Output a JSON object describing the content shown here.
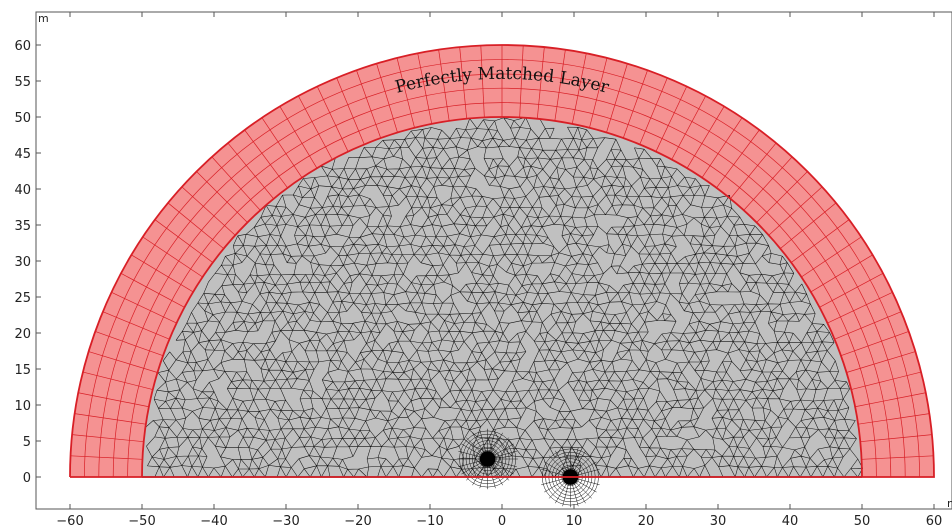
{
  "plot": {
    "x_unit": "m",
    "y_unit": "m",
    "xlim": [
      -60,
      60
    ],
    "ylim": [
      0,
      60
    ],
    "x_ticks": [
      -60,
      -50,
      -40,
      -30,
      -20,
      -10,
      0,
      10,
      20,
      30,
      40,
      50,
      60
    ],
    "y_ticks": [
      0,
      5,
      10,
      15,
      20,
      25,
      30,
      35,
      40,
      45,
      50,
      55,
      60
    ]
  },
  "geometry": {
    "inner_radius": 50,
    "outer_radius": 60,
    "refined_points": [
      [
        -2,
        2.5
      ],
      [
        9.5,
        0
      ]
    ]
  },
  "labels": {
    "pml": "Perfectly Matched Layer"
  },
  "colors": {
    "pml_fill": "#f59292",
    "pml_edge": "#d81f26",
    "domain_fill": "#c0c0c0",
    "mesh_line": "#111111"
  }
}
